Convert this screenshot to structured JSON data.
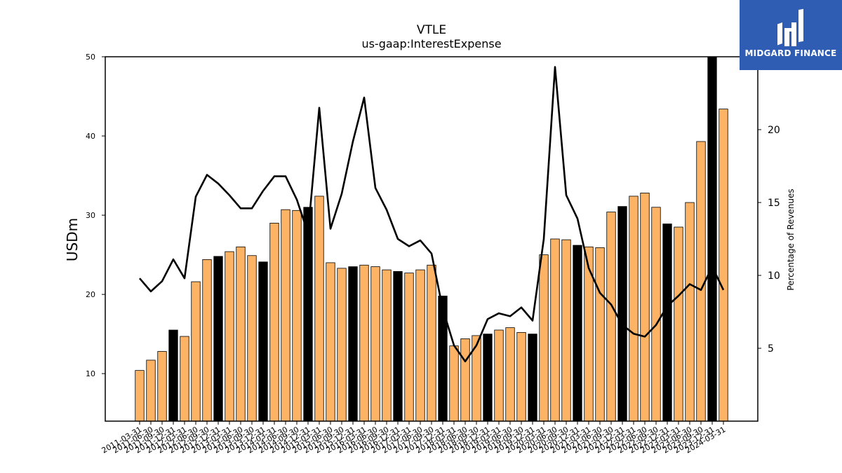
{
  "brand": {
    "name": "MIDGARD FINANCE",
    "bg_color": "#2f5db3"
  },
  "chart_data": {
    "type": "bar",
    "title": "VTLE",
    "subtitle": "us-gaap:InterestExpense",
    "ylabel": "USDm",
    "y2label": "Percentage of Revenues",
    "ylim": [
      4,
      50
    ],
    "y2lim": [
      0,
      25
    ],
    "yticks": [
      10,
      20,
      30,
      40,
      50
    ],
    "y2ticks": [
      5,
      10,
      15,
      20
    ],
    "bar_color": "#fdb366",
    "fiscal_year_end_bar_color": "#000000",
    "line_color": "#000000",
    "categories": [
      "2011-03-31",
      "2011-06-30",
      "2011-09-30",
      "2011-12-31",
      "2012-03-31",
      "2012-06-30",
      "2012-09-30",
      "2012-12-31",
      "2013-03-31",
      "2013-06-30",
      "2013-09-30",
      "2013-12-31",
      "2014-03-31",
      "2014-06-30",
      "2014-09-30",
      "2014-12-31",
      "2015-03-31",
      "2015-06-30",
      "2015-09-30",
      "2015-12-31",
      "2016-03-31",
      "2016-06-30",
      "2016-09-30",
      "2016-12-31",
      "2017-03-31",
      "2017-06-30",
      "2017-09-30",
      "2017-12-31",
      "2018-03-31",
      "2018-06-30",
      "2018-09-30",
      "2018-12-31",
      "2019-03-31",
      "2019-06-30",
      "2019-09-30",
      "2019-12-31",
      "2020-03-31",
      "2020-06-30",
      "2020-09-30",
      "2020-12-31",
      "2021-03-31",
      "2021-06-30",
      "2021-09-30",
      "2021-12-31",
      "2022-03-31",
      "2022-06-30",
      "2022-09-30",
      "2022-12-31",
      "2023-03-31",
      "2023-06-30",
      "2023-09-30",
      "2023-12-31",
      "2024-03-31"
    ],
    "tick_labels": [
      "2011-03-31",
      "2011-06-30",
      "2011-09-30",
      "2011-12-31",
      "2012-03-31",
      "2012-06-30",
      "2012-09-30",
      "2012-12-31",
      "2013-03-31",
      "2013-06-30",
      "2013-09-30",
      "2013-12-31",
      "2014-03-31",
      "2014-06-30",
      "2014-09-30",
      "2014-12-31",
      "2015-03-31",
      "2015-06-30",
      "2015-09-30",
      "2015-12-31",
      "2016-03-31",
      "2016-06-30",
      "2016-09-30",
      "2016-12-31",
      "2017-03-31",
      "2017-06-30",
      "2017-09-30",
      "2017-12-31",
      "2018-03-31",
      "2018-06-30",
      "2018-09-30",
      "2018-12-31",
      "2019-03-31",
      "2019-06-30",
      "2019-09-30",
      "2019-12-31",
      "2020-03-31",
      "2020-06-30",
      "2020-09-30",
      "2020-12-31",
      "2021-03-31",
      "2021-06-30",
      "2021-09-30",
      "2021-12-31",
      "2022-03-31",
      "2022-06-30",
      "2022-09-30",
      "2022-12-31",
      "2023-03-31",
      "2023-06-30",
      "2023-09-30",
      "2023-12-31",
      "2024-03-31"
    ],
    "fiscal_year_end_flags": [
      0,
      0,
      0,
      1,
      0,
      0,
      0,
      1,
      0,
      0,
      0,
      1,
      0,
      0,
      0,
      1,
      0,
      0,
      0,
      1,
      0,
      0,
      0,
      1,
      0,
      0,
      0,
      1,
      0,
      0,
      0,
      1,
      0,
      0,
      0,
      1,
      0,
      0,
      0,
      1,
      0,
      0,
      0,
      1,
      0,
      0,
      0,
      1,
      0,
      0,
      0,
      1,
      0
    ],
    "series": [
      {
        "name": "InterestExpense",
        "type": "bar",
        "values": [
          10.4,
          11.7,
          12.8,
          15.5,
          14.7,
          21.6,
          24.4,
          24.8,
          25.4,
          26.0,
          24.9,
          24.1,
          29.0,
          30.7,
          30.6,
          31.0,
          32.4,
          24.0,
          23.3,
          23.5,
          23.7,
          23.5,
          23.1,
          22.9,
          22.7,
          23.1,
          23.7,
          19.8,
          13.5,
          14.4,
          14.8,
          15.0,
          15.5,
          15.8,
          15.2,
          15.0,
          25.0,
          27.0,
          26.9,
          26.2,
          26.0,
          25.9,
          30.4,
          31.1,
          32.4,
          32.8,
          31.0,
          28.9,
          28.5,
          31.6,
          39.3,
          50.0,
          43.4
        ]
      },
      {
        "name": "Percentage of Revenues",
        "type": "line",
        "axis": "right",
        "values": [
          9.8,
          8.9,
          9.6,
          11.1,
          9.8,
          15.4,
          16.9,
          16.3,
          15.5,
          14.6,
          14.6,
          15.8,
          16.8,
          16.8,
          15.2,
          12.9,
          21.5,
          13.2,
          15.6,
          19.2,
          22.2,
          16.0,
          14.5,
          12.5,
          12.0,
          12.4,
          11.5,
          7.7,
          5.2,
          4.1,
          5.2,
          7.0,
          7.4,
          7.2,
          7.8,
          6.9,
          12.5,
          24.3,
          15.5,
          13.9,
          10.5,
          8.8,
          8.0,
          6.6,
          6.0,
          5.8,
          6.6,
          7.9,
          8.6,
          9.4,
          9.0,
          10.6,
          9.0
        ]
      }
    ]
  }
}
